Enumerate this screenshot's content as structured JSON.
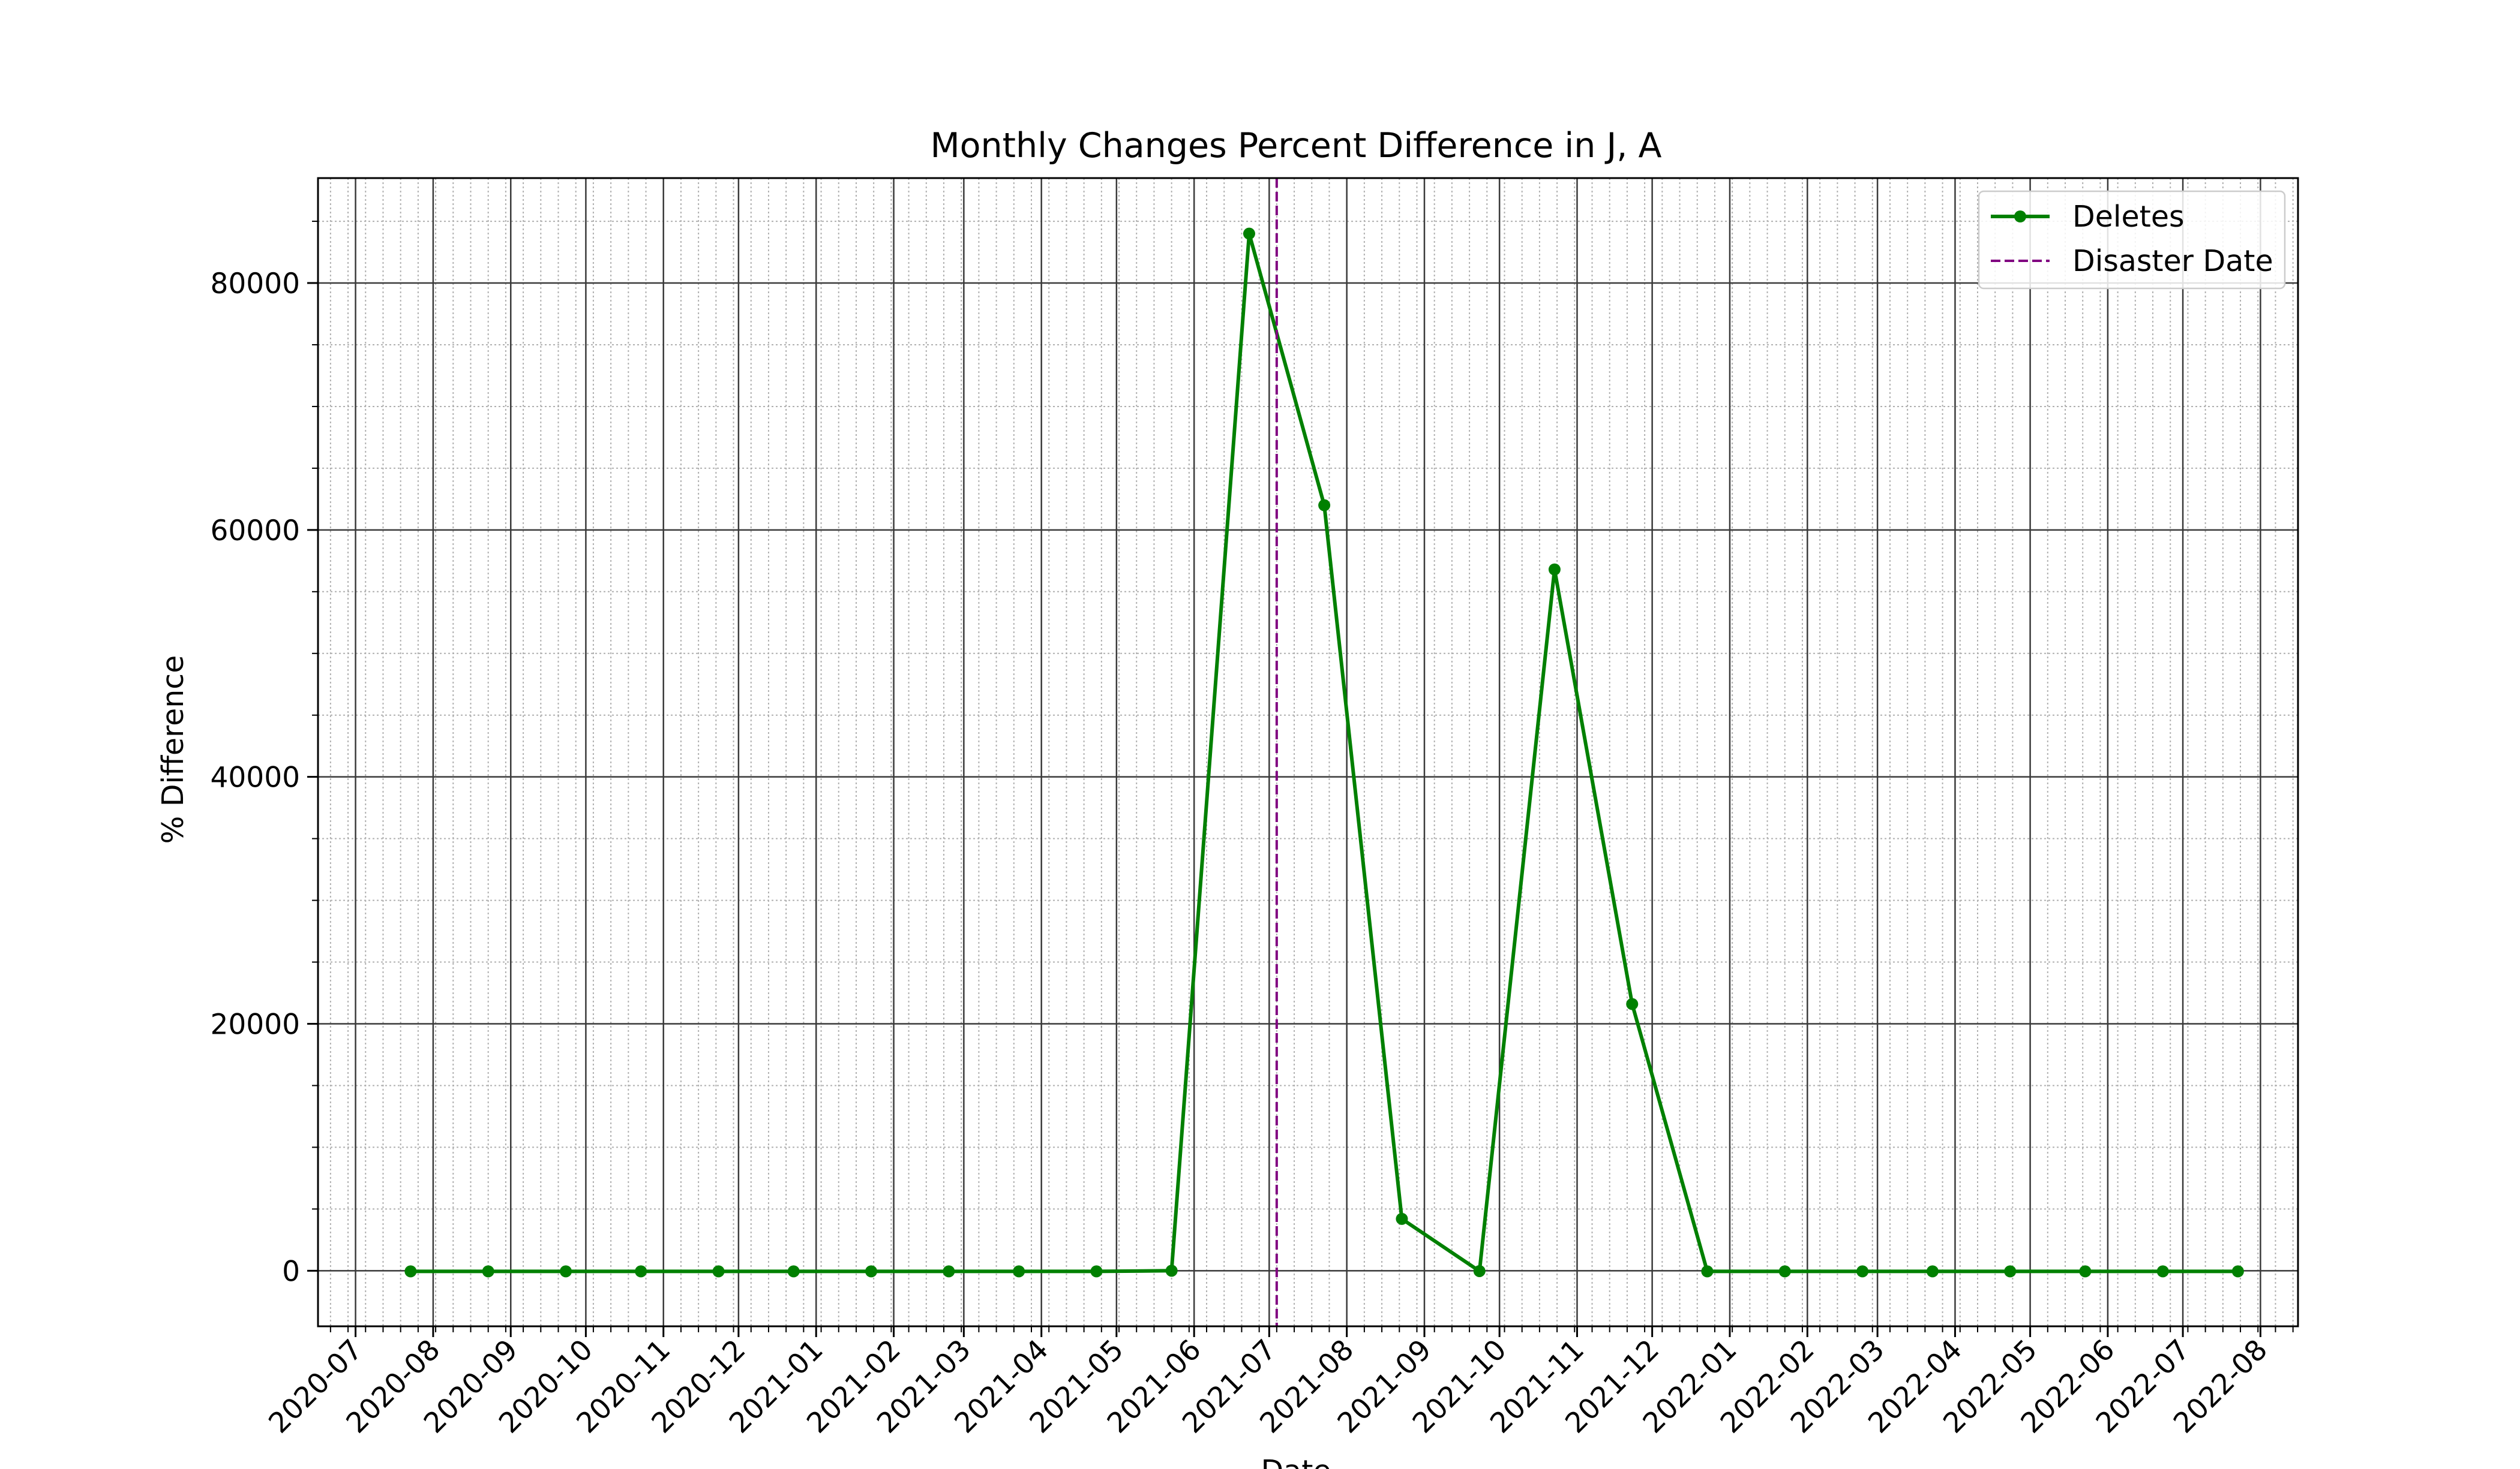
{
  "chart_data": {
    "type": "line",
    "title": "Monthly Changes Percent Difference in J, A",
    "xlabel": "Date",
    "ylabel": "% Difference",
    "x_axis_type": "date",
    "xlim": [
      "2020-06-16",
      "2022-08-16"
    ],
    "ylim": [
      -4500,
      88500
    ],
    "x_tick_labels": [
      "2020-07",
      "2020-08",
      "2020-09",
      "2020-10",
      "2020-11",
      "2020-12",
      "2021-01",
      "2021-02",
      "2021-03",
      "2021-04",
      "2021-05",
      "2021-06",
      "2021-07",
      "2021-08",
      "2021-09",
      "2021-10",
      "2021-11",
      "2021-12",
      "2022-01",
      "2022-02",
      "2022-03",
      "2022-04",
      "2022-05",
      "2022-06",
      "2022-07",
      "2022-08"
    ],
    "y_ticks": [
      0,
      20000,
      40000,
      60000,
      80000
    ],
    "y_tick_labels": [
      "0",
      "20000",
      "40000",
      "60000",
      "80000"
    ],
    "grid": {
      "major": true,
      "minor": true
    },
    "legend_position": "top-right",
    "series": [
      {
        "name": "Deletes",
        "color": "#008000",
        "line_style": "solid",
        "marker": "circle",
        "x": [
          "2020-07-23",
          "2020-08-23",
          "2020-09-23",
          "2020-10-23",
          "2020-11-23",
          "2020-12-23",
          "2021-01-23",
          "2021-02-23",
          "2021-03-23",
          "2021-04-23",
          "2021-05-23",
          "2021-06-23",
          "2021-07-23",
          "2021-08-23",
          "2021-09-23",
          "2021-10-23",
          "2021-11-23",
          "2021-12-23",
          "2022-01-23",
          "2022-02-23",
          "2022-03-23",
          "2022-04-23",
          "2022-05-23",
          "2022-06-23",
          "2022-07-23"
        ],
        "y": [
          -50,
          -50,
          -50,
          -50,
          -50,
          -50,
          -50,
          -50,
          -50,
          -50,
          0,
          84000,
          62000,
          4200,
          -30,
          56800,
          21600,
          -50,
          -50,
          -50,
          -50,
          -50,
          -50,
          -50,
          -50
        ]
      }
    ],
    "vlines": [
      {
        "name": "Disaster Date",
        "x": "2021-07-04",
        "color": "#800080",
        "line_style": "dashed"
      }
    ]
  }
}
